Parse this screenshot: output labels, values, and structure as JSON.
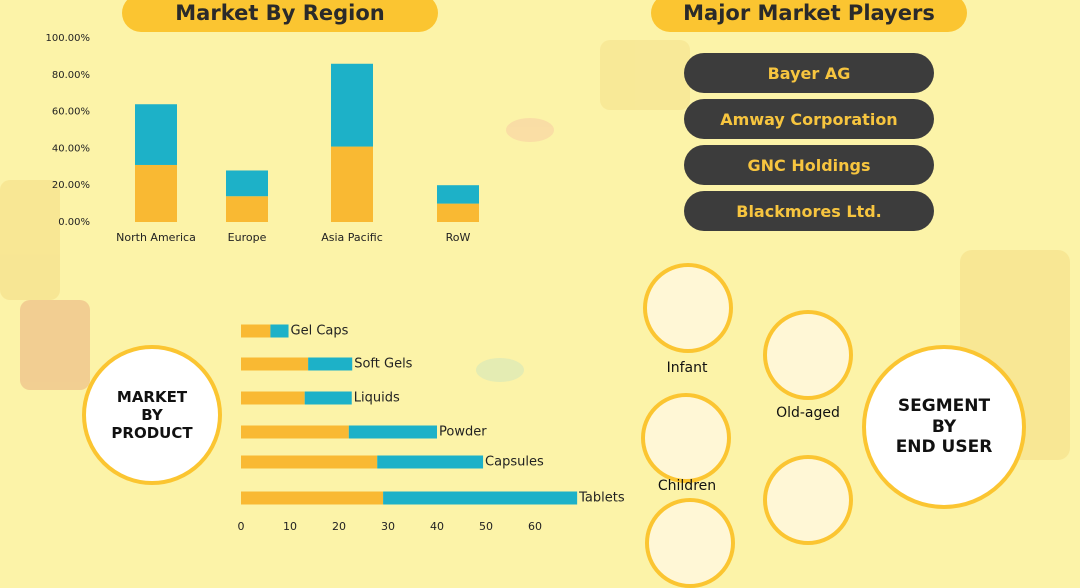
{
  "chart_data": [
    {
      "type": "bar",
      "stacked": true,
      "title": "Market By Region",
      "categories": [
        "North America",
        "Europe",
        "Asia Pacific",
        "RoW"
      ],
      "series": [
        {
          "color": "#f9b933",
          "values": [
            31,
            14,
            41,
            10
          ]
        },
        {
          "color": "#1db1c8",
          "values": [
            33,
            14,
            45,
            10
          ]
        }
      ],
      "ylim": [
        0,
        100
      ],
      "yticks": [
        {
          "value": 0,
          "label": "0.00%"
        },
        {
          "value": 20,
          "label": "20.00%"
        },
        {
          "value": 40,
          "label": "40.00%"
        },
        {
          "value": 60,
          "label": "60.00%"
        },
        {
          "value": 80,
          "label": "80.00%"
        },
        {
          "value": 100,
          "label": "100.00%"
        }
      ]
    },
    {
      "type": "barh",
      "stacked": true,
      "title": "MARKET\nBY\nPRODUCT",
      "categories": [
        "Gel Caps",
        "Soft Gels",
        "Liquids",
        "Powder",
        "Capsules",
        "Tablets"
      ],
      "series": [
        {
          "color": "#f9b933",
          "values": [
            6,
            13.7,
            13,
            22,
            27.8,
            29
          ]
        },
        {
          "color": "#1db1c8",
          "values": [
            3.7,
            9,
            9.6,
            18,
            21.6,
            39.6
          ]
        }
      ],
      "xlim": [
        0,
        70
      ],
      "xticks": [
        0,
        10,
        20,
        30,
        40,
        50,
        60
      ]
    }
  ],
  "players": {
    "title": "Major Market Players",
    "items": [
      "Bayer AG",
      "Amway Corporation",
      "GNC Holdings",
      "Blackmores Ltd."
    ]
  },
  "end_user": {
    "title": "SEGMENT\nBY\nEND USER",
    "segments": [
      "Infant",
      "Old-aged",
      "Children"
    ]
  }
}
